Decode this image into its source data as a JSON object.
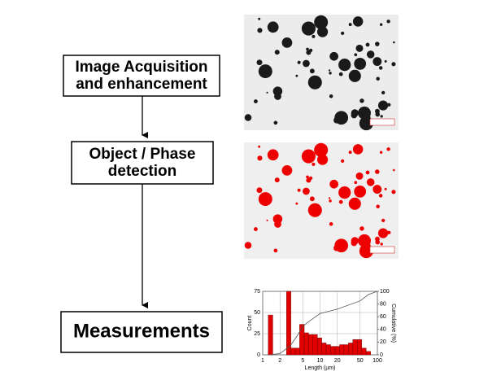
{
  "nodes": [
    {
      "lines": [
        "Image Acquisition",
        "and enhancement"
      ]
    },
    {
      "lines": [
        "Object / Phase",
        "detection"
      ]
    },
    {
      "lines": [
        "Measurements"
      ]
    }
  ],
  "chart_data": {
    "type": "histogram",
    "bins": [
      1.25,
      1.5,
      1.8,
      2.2,
      2.6,
      3.1,
      3.7,
      4.4,
      5.3,
      6.3,
      7.5,
      9,
      10.7,
      12.8,
      15.3,
      18.3,
      21.9,
      26.1,
      31.2,
      37.3,
      44.6,
      53.3,
      63.7,
      76.1
    ],
    "values": [
      47,
      0,
      0,
      0,
      75,
      8,
      8,
      36,
      26,
      24,
      24,
      20,
      14,
      12,
      10,
      10,
      12,
      12,
      14,
      18,
      18,
      8,
      4
    ],
    "color": "#e00000",
    "xscale": "log",
    "xlim": [
      1,
      100
    ],
    "xticks": [
      1,
      2,
      5,
      10,
      20,
      50,
      100
    ],
    "ylim": [
      0,
      75
    ],
    "yticks": [
      0,
      25,
      50,
      75
    ],
    "y2lim": [
      0,
      100
    ],
    "y2ticks": [
      0,
      20,
      40,
      60,
      80,
      100
    ],
    "grid": true,
    "xlabel": "Length (µm)",
    "ylabel": "Count",
    "y2label": "Cumulative (%)",
    "series": [
      {
        "color": "#555555",
        "axis": "y2",
        "x": [
          1.3,
          2,
          3,
          4,
          5,
          7,
          10,
          20,
          50,
          70,
          100
        ],
        "values": [
          0,
          2,
          14,
          30,
          45,
          55,
          65,
          72,
          85,
          95,
          100
        ]
      }
    ]
  }
}
